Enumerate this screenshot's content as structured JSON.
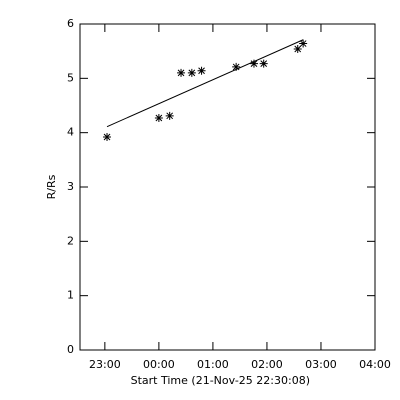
{
  "chart_data": {
    "type": "scatter",
    "x_label": "Start Time (21-Nov-25 22:30:08)",
    "y_label": "R/Rs",
    "x": [
      23.04,
      24.0,
      24.2,
      24.41,
      24.61,
      24.79,
      25.43,
      25.76,
      25.94,
      26.57,
      26.67
    ],
    "values": [
      3.92,
      4.27,
      4.31,
      5.1,
      5.1,
      5.14,
      5.21,
      5.27,
      5.27,
      5.54,
      5.64
    ],
    "fit": {
      "x": [
        23.04,
        26.67
      ],
      "values": [
        4.11,
        5.71
      ]
    },
    "color": "#000000",
    "xlim": [
      22.54,
      28
    ],
    "ylim": [
      0,
      6
    ],
    "xticks": [
      {
        "value": 23,
        "label": "23:00"
      },
      {
        "value": 24,
        "label": "00:00"
      },
      {
        "value": 25,
        "label": "01:00"
      },
      {
        "value": 26,
        "label": "02:00"
      },
      {
        "value": 27,
        "label": "03:00"
      },
      {
        "value": 28,
        "label": "04:00"
      }
    ],
    "yticks": [
      0,
      1,
      2,
      3,
      4,
      5,
      6
    ]
  }
}
